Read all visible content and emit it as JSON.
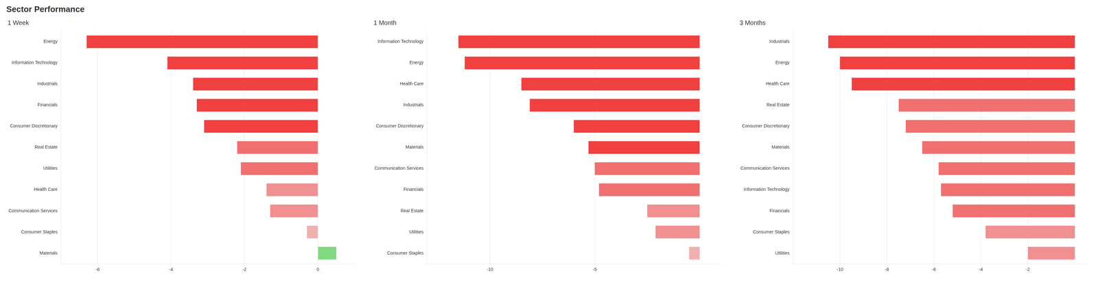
{
  "title": "Sector Performance",
  "chart_data": [
    {
      "type": "bar",
      "orientation": "horizontal",
      "title": "1 Week",
      "categories": [
        "Energy",
        "Information Technology",
        "Industrials",
        "Financials",
        "Consumer Discretionary",
        "Real Estate",
        "Utilities",
        "Health Care",
        "Communication Services",
        "Consumer Staples",
        "Materials"
      ],
      "values": [
        -6.3,
        -4.1,
        -3.4,
        -3.3,
        -3.1,
        -2.2,
        -2.1,
        -1.4,
        -1.3,
        -0.3,
        0.5
      ],
      "colors": [
        "#f04040",
        "#f04040",
        "#f04040",
        "#f04040",
        "#f04040",
        "#f07070",
        "#f07070",
        "#f09090",
        "#f09090",
        "#f0b0b0",
        "#80d880"
      ],
      "xlim": [
        -7,
        1
      ],
      "xticks": [
        -6,
        -4,
        -2,
        0
      ],
      "grid": true
    },
    {
      "type": "bar",
      "orientation": "horizontal",
      "title": "1 Month",
      "categories": [
        "Information Technology",
        "Energy",
        "Health Care",
        "Industrials",
        "Consumer Discretionary",
        "Materials",
        "Communication Services",
        "Financials",
        "Real Estate",
        "Utilities",
        "Consumer Staples"
      ],
      "values": [
        -11.5,
        -11.2,
        -8.5,
        -8.1,
        -6.0,
        -5.3,
        -5.0,
        -4.8,
        -2.5,
        -2.1,
        -0.5
      ],
      "colors": [
        "#f04040",
        "#f04040",
        "#f04040",
        "#f04040",
        "#f04040",
        "#f04040",
        "#f07070",
        "#f07070",
        "#f09090",
        "#f09090",
        "#f0b0b0"
      ],
      "xlim": [
        -13,
        1
      ],
      "xticks": [
        -10,
        -5
      ],
      "grid": true
    },
    {
      "type": "bar",
      "orientation": "horizontal",
      "title": "3 Months",
      "categories": [
        "Industrials",
        "Energy",
        "Health Care",
        "Real Estate",
        "Consumer Discretionary",
        "Materials",
        "Communication Services",
        "Information Technology",
        "Financials",
        "Consumer Staples",
        "Utilities"
      ],
      "values": [
        -10.5,
        -10.0,
        -9.5,
        -7.5,
        -7.2,
        -6.5,
        -5.8,
        -5.7,
        -5.2,
        -3.8,
        -2.0
      ],
      "colors": [
        "#f04040",
        "#f04040",
        "#f04040",
        "#f07070",
        "#f07070",
        "#f07070",
        "#f07070",
        "#f07070",
        "#f07070",
        "#f09090",
        "#f09090"
      ],
      "xlim": [
        -12,
        0.5
      ],
      "xticks": [
        -10,
        -8,
        -6,
        -4,
        -2
      ],
      "grid": true
    }
  ]
}
